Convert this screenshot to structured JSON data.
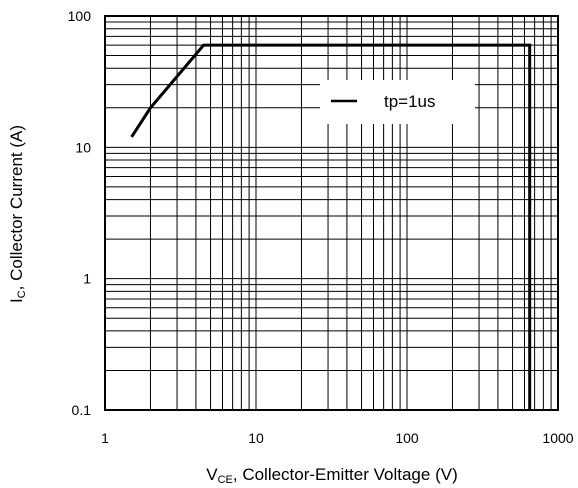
{
  "chart_data": {
    "type": "line",
    "x_scale": "log",
    "y_scale": "log",
    "xlim": [
      1,
      1000
    ],
    "ylim": [
      0.1,
      100
    ],
    "grid": true,
    "legend_position": "top-right",
    "x_ticks": [
      "1",
      "10",
      "100",
      "1000"
    ],
    "y_ticks": [
      "0.1",
      "1",
      "10",
      "100"
    ],
    "xlabel": {
      "main": "V",
      "sub": "CE",
      "rest": ", Collector-Emitter Voltage (V)"
    },
    "ylabel": {
      "main": "I",
      "sub": "C",
      "rest": ", Collector Current (A)"
    },
    "series": [
      {
        "name": "tp=1us",
        "color": "#000000",
        "x": [
          1.5,
          2.0,
          4.5,
          650,
          650
        ],
        "y": [
          12,
          20,
          60,
          60,
          0.1
        ]
      }
    ]
  }
}
